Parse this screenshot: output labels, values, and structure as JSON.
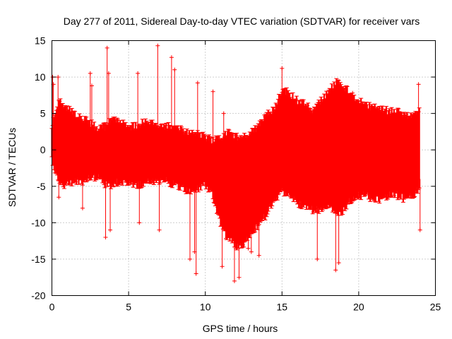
{
  "chart_data": {
    "type": "scatter",
    "title": "Day 277 of 2011, Sidereal Day-to-day VTEC variation (SDTVAR) for receiver vars",
    "xlabel": "GPS time / hours",
    "ylabel": "SDTVAR / TECUs",
    "xlim": [
      0,
      25
    ],
    "ylim": [
      -20,
      15
    ],
    "x_ticks": [
      0,
      5,
      10,
      15,
      20,
      25
    ],
    "y_ticks": [
      -20,
      -15,
      -10,
      -5,
      0,
      5,
      10,
      15
    ],
    "x_tick_labels": [
      "0",
      "5",
      "10",
      "15",
      "20",
      "25"
    ],
    "y_tick_labels": [
      "-20",
      "-15",
      "-10",
      "-5",
      "0",
      "5",
      "10",
      "15"
    ],
    "grid": true,
    "marker": "plus with error bars",
    "series_color": "#ff0000",
    "series": [
      {
        "name": "vars",
        "envelope_x": [
          0.0,
          0.5,
          1.0,
          1.5,
          2.0,
          2.5,
          3.0,
          3.5,
          4.0,
          4.5,
          5.0,
          5.5,
          6.0,
          6.5,
          7.0,
          7.5,
          8.0,
          8.5,
          9.0,
          9.5,
          10.0,
          10.5,
          11.0,
          11.5,
          12.0,
          12.5,
          13.0,
          13.5,
          14.0,
          14.5,
          15.0,
          15.5,
          16.0,
          16.5,
          17.0,
          17.5,
          18.0,
          18.5,
          19.0,
          19.5,
          20.0,
          20.5,
          21.0,
          21.5,
          22.0,
          22.5,
          23.0,
          23.5,
          24.0
        ],
        "envelope_upper": [
          3.0,
          6.5,
          5.5,
          4.5,
          4.0,
          3.5,
          2.5,
          3.0,
          4.0,
          3.5,
          3.0,
          3.0,
          3.5,
          3.5,
          3.0,
          3.0,
          3.0,
          2.5,
          2.0,
          2.0,
          1.5,
          1.0,
          1.5,
          2.0,
          1.5,
          1.5,
          2.0,
          3.0,
          4.5,
          5.5,
          8.0,
          7.5,
          6.5,
          6.0,
          5.0,
          6.5,
          7.5,
          9.0,
          8.5,
          7.5,
          6.5,
          6.0,
          5.5,
          5.5,
          5.0,
          5.0,
          4.5,
          4.5,
          5.0
        ],
        "envelope_lower": [
          -1.0,
          -4.5,
          -4.5,
          -4.0,
          -4.0,
          -3.5,
          -3.5,
          -4.5,
          -4.5,
          -4.0,
          -4.5,
          -4.5,
          -4.5,
          -4.0,
          -4.0,
          -4.0,
          -4.5,
          -5.0,
          -5.5,
          -5.0,
          -4.5,
          -6.0,
          -10.0,
          -12.0,
          -13.0,
          -12.5,
          -11.0,
          -10.0,
          -8.5,
          -6.5,
          -5.5,
          -6.0,
          -7.0,
          -7.5,
          -8.0,
          -8.0,
          -7.5,
          -8.5,
          -8.0,
          -6.5,
          -6.0,
          -6.0,
          -6.5,
          -6.5,
          -6.0,
          -6.0,
          -6.5,
          -6.0,
          -5.0
        ],
        "outliers": [
          [
            0.05,
            10.0
          ],
          [
            0.1,
            9.0
          ],
          [
            0.4,
            10.0
          ],
          [
            0.45,
            -6.5
          ],
          [
            2.0,
            -8.0
          ],
          [
            2.5,
            10.5
          ],
          [
            2.6,
            8.8
          ],
          [
            3.5,
            -12.0
          ],
          [
            3.6,
            14.0
          ],
          [
            3.7,
            10.5
          ],
          [
            3.8,
            -11.0
          ],
          [
            5.6,
            10.5
          ],
          [
            5.7,
            -10.0
          ],
          [
            6.9,
            14.3
          ],
          [
            7.0,
            -11.0
          ],
          [
            7.8,
            12.7
          ],
          [
            8.0,
            11.0
          ],
          [
            9.0,
            -15.0
          ],
          [
            9.3,
            -14.0
          ],
          [
            9.4,
            -17.0
          ],
          [
            9.5,
            9.2
          ],
          [
            10.5,
            8.0
          ],
          [
            11.1,
            -16.0
          ],
          [
            11.2,
            5.0
          ],
          [
            11.9,
            -18.0
          ],
          [
            12.2,
            -17.5
          ],
          [
            12.8,
            -13.5
          ],
          [
            13.0,
            -14.0
          ],
          [
            13.5,
            -14.5
          ],
          [
            15.0,
            11.2
          ],
          [
            17.3,
            -15.0
          ],
          [
            18.5,
            -16.5
          ],
          [
            18.7,
            -15.5
          ],
          [
            19.6,
            7.8
          ],
          [
            23.9,
            9.0
          ],
          [
            24.0,
            -11.0
          ]
        ]
      }
    ]
  }
}
